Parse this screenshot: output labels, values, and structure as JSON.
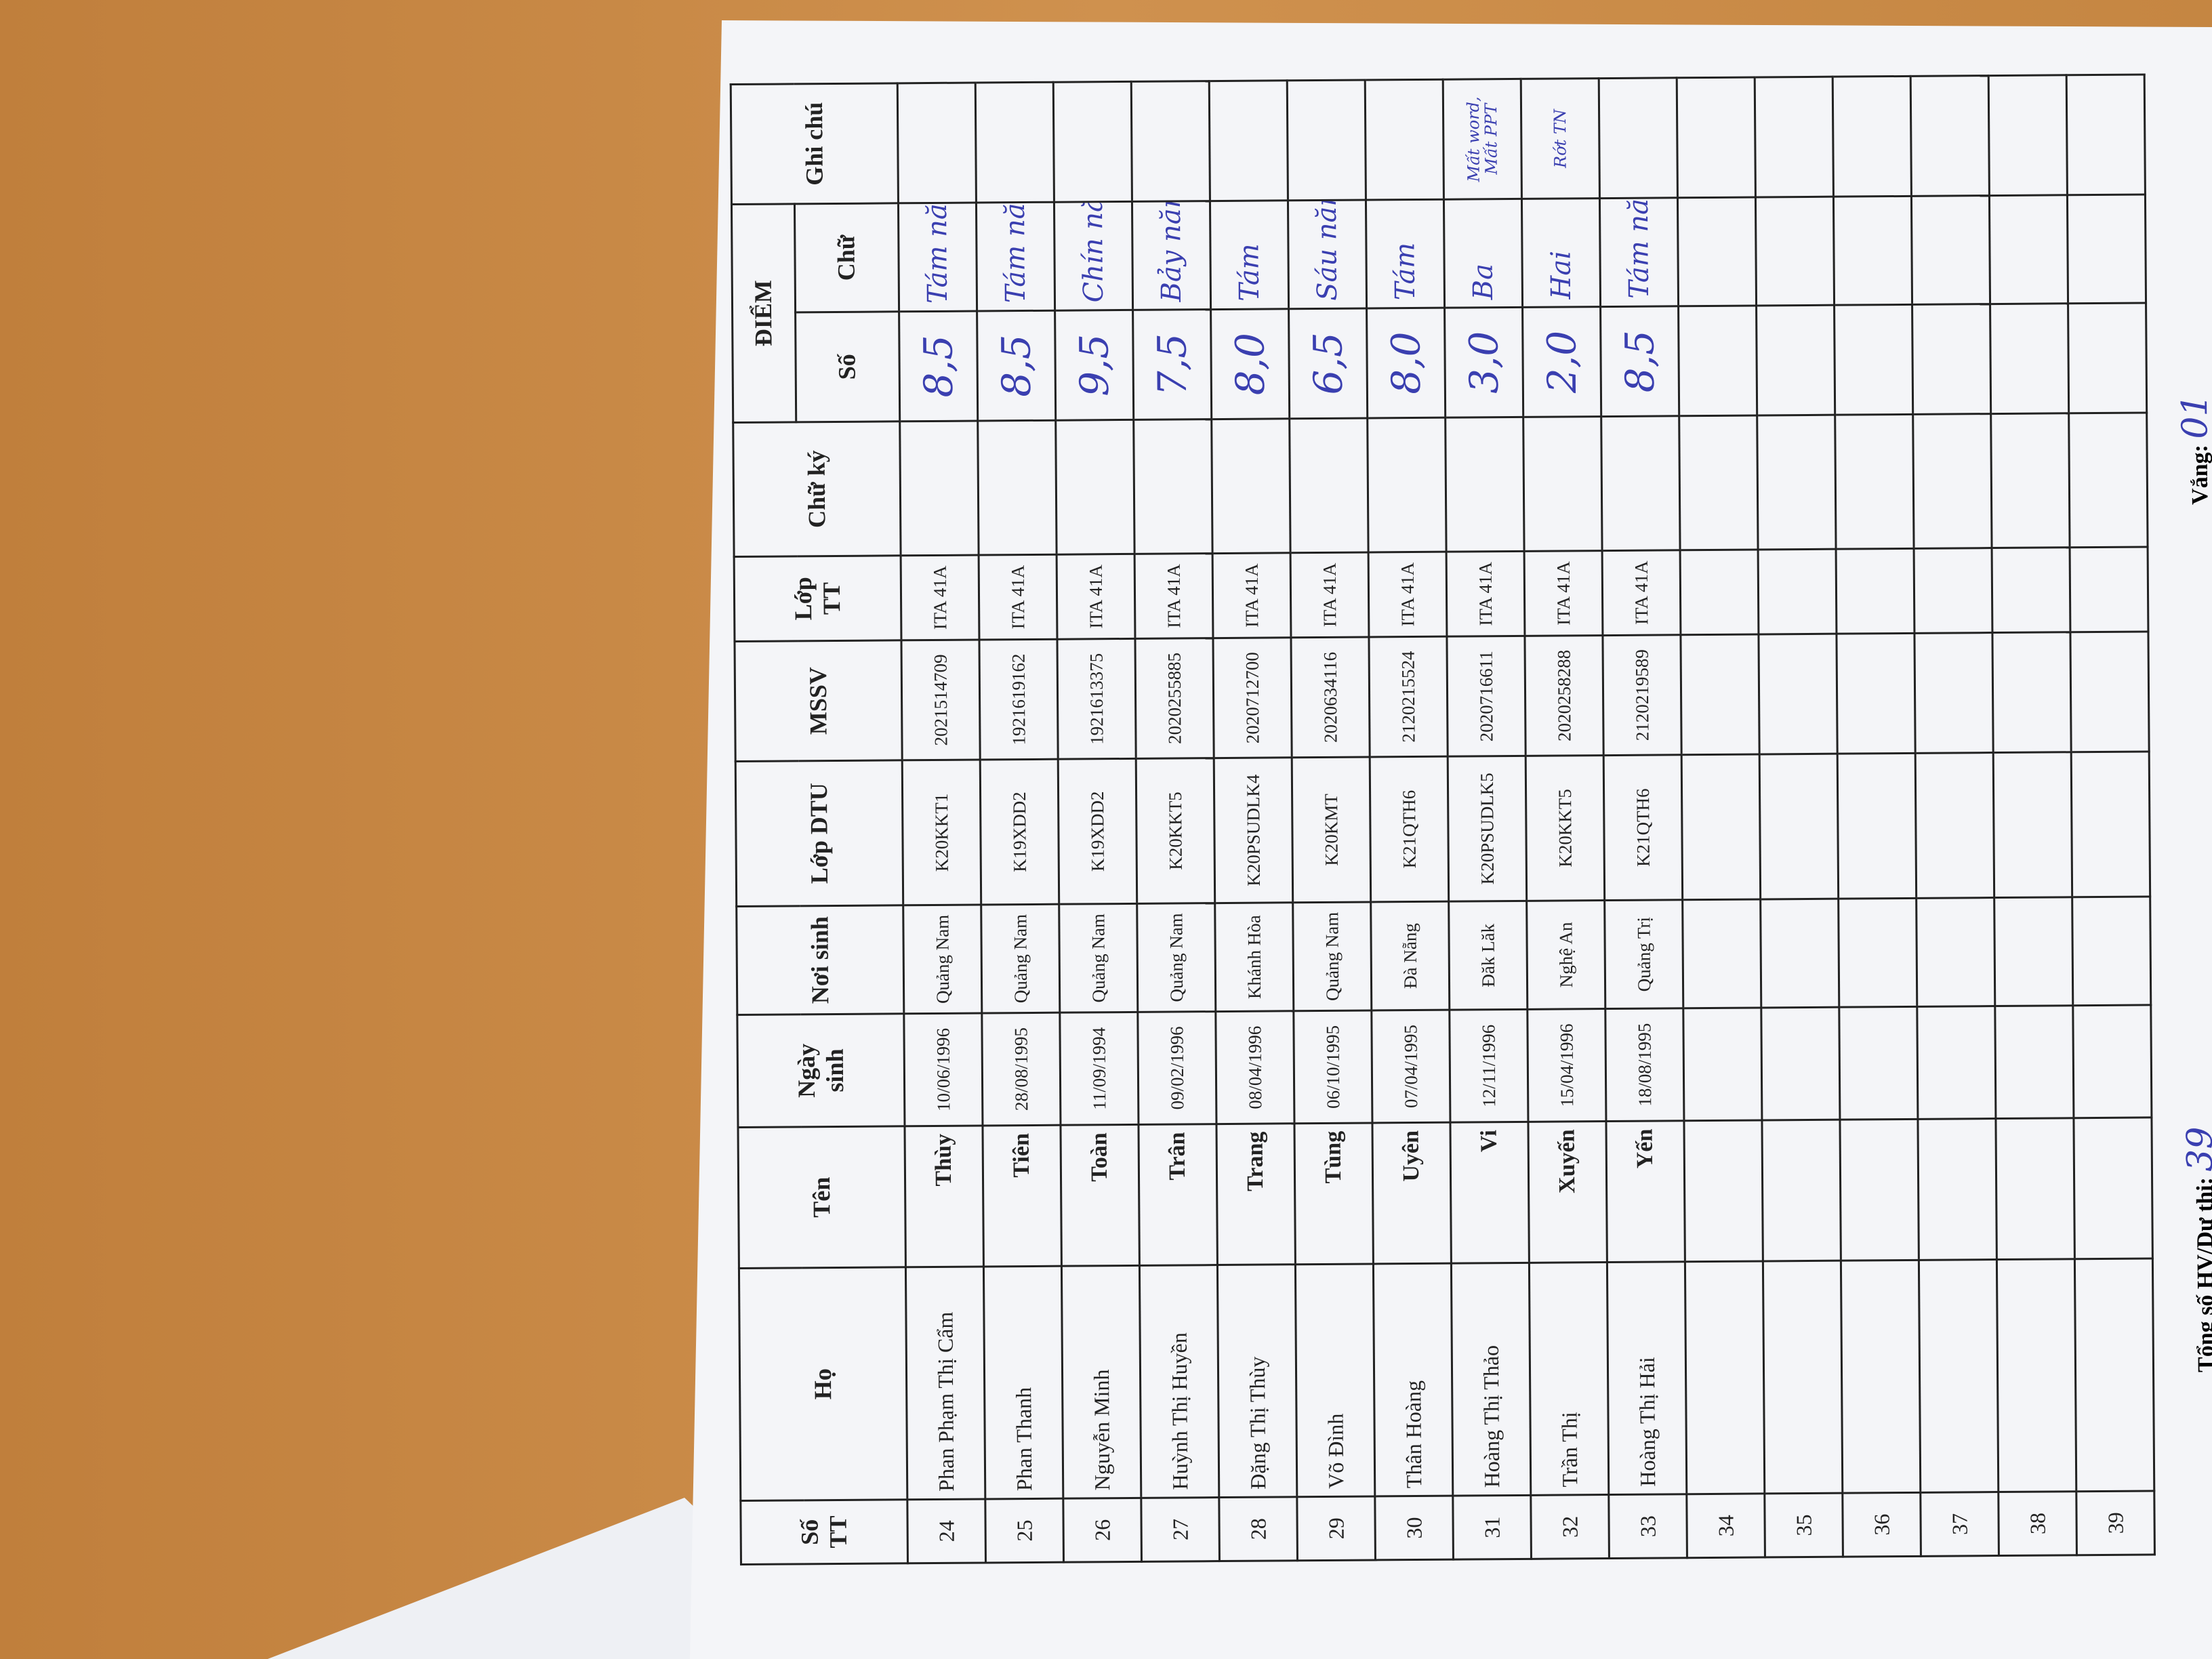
{
  "table": {
    "header": {
      "stt": "Số TT",
      "ho": "Họ",
      "ten": "Tên",
      "ngay_sinh": "Ngày sinh",
      "noi_sinh": "Nơi sinh",
      "lop_dtu": "Lớp DTU",
      "mssv": "MSSV",
      "lop_tt": "Lớp TT",
      "chu_ky": "Chữ ký",
      "diem": "ĐIỂM",
      "diem_so": "Số",
      "diem_chu": "Chữ",
      "ghi_chu": "Ghi chú"
    },
    "rows": [
      {
        "stt": 24,
        "ho": "Phan Phạm Thị Cẩm",
        "ten": "Thùy",
        "ngay_sinh": "10/06/1996",
        "noi_sinh": "Quảng Nam",
        "lop_dtu": "K20KKT1",
        "mssv": "2021514709",
        "lop_tt": "ITA 41A",
        "diem_so": "8,5",
        "diem_chu": "Tám năm"
      },
      {
        "stt": 25,
        "ho": "Phan Thanh",
        "ten": "Tiên",
        "ngay_sinh": "28/08/1995",
        "noi_sinh": "Quảng Nam",
        "lop_dtu": "K19XDD2",
        "mssv": "1921619162",
        "lop_tt": "ITA 41A",
        "diem_so": "8,5",
        "diem_chu": "Tám năm"
      },
      {
        "stt": 26,
        "ho": "Nguyễn Minh",
        "ten": "Toàn",
        "ngay_sinh": "11/09/1994",
        "noi_sinh": "Quảng Nam",
        "lop_dtu": "K19XDD2",
        "mssv": "1921613375",
        "lop_tt": "ITA 41A",
        "diem_so": "9,5",
        "diem_chu": "Chín năm"
      },
      {
        "stt": 27,
        "ho": "Huỳnh Thị Huyền",
        "ten": "Trân",
        "ngay_sinh": "09/02/1996",
        "noi_sinh": "Quảng Nam",
        "lop_dtu": "K20KKT5",
        "mssv": "2020255885",
        "lop_tt": "ITA 41A",
        "diem_so": "7,5",
        "diem_chu": "Bảy năm"
      },
      {
        "stt": 28,
        "ho": "Đặng Thị Thùy",
        "ten": "Trang",
        "ngay_sinh": "08/04/1996",
        "noi_sinh": "Khánh Hòa",
        "lop_dtu": "K20PSUDLK4",
        "mssv": "2020712700",
        "lop_tt": "ITA 41A",
        "diem_so": "8,0",
        "diem_chu": "Tám"
      },
      {
        "stt": 29,
        "ho": "Võ Đình",
        "ten": "Tùng",
        "ngay_sinh": "06/10/1995",
        "noi_sinh": "Quảng Nam",
        "lop_dtu": "K20KMT",
        "mssv": "2020634116",
        "lop_tt": "ITA 41A",
        "diem_so": "6,5",
        "diem_chu": "Sáu năm"
      },
      {
        "stt": 30,
        "ho": "Thân Hoàng",
        "ten": "Uyên",
        "ngay_sinh": "07/04/1995",
        "noi_sinh": "Đà Nẵng",
        "lop_dtu": "K21QTH6",
        "mssv": "2120215524",
        "lop_tt": "ITA 41A",
        "diem_so": "8,0",
        "diem_chu": "Tám"
      },
      {
        "stt": 31,
        "ho": "Hoàng Thị Thảo",
        "ten": "Vi",
        "ngay_sinh": "12/11/1996",
        "noi_sinh": "Đăk Lăk",
        "lop_dtu": "K20PSUDLK5",
        "mssv": "2020716611",
        "lop_tt": "ITA 41A",
        "diem_so": "3,0",
        "diem_chu": "Ba",
        "ghi_chu": "Mất word, Mất PPT"
      },
      {
        "stt": 32,
        "ho": "Trần Thị",
        "ten": "Xuyến",
        "ngay_sinh": "15/04/1996",
        "noi_sinh": "Nghệ An",
        "lop_dtu": "K20KKT5",
        "mssv": "2020258288",
        "lop_tt": "ITA 41A",
        "diem_so": "2,0",
        "diem_chu": "Hai",
        "ghi_chu": "Rớt TN"
      },
      {
        "stt": 33,
        "ho": "Hoàng Thị Hải",
        "ten": "Yến",
        "ngay_sinh": "18/08/1995",
        "noi_sinh": "Quảng Trị",
        "lop_dtu": "K21QTH6",
        "mssv": "2120219589",
        "lop_tt": "ITA 41A",
        "diem_so": "8,5",
        "diem_chu": "Tám năm"
      },
      {
        "stt": 34
      },
      {
        "stt": 35
      },
      {
        "stt": 36
      },
      {
        "stt": 37
      },
      {
        "stt": 38
      },
      {
        "stt": 39
      }
    ]
  },
  "footer": {
    "total_label": "Tổng số HV/Dự thi:",
    "total_value": "39",
    "absent_label": "Vắng:",
    "absent_value": "01"
  }
}
